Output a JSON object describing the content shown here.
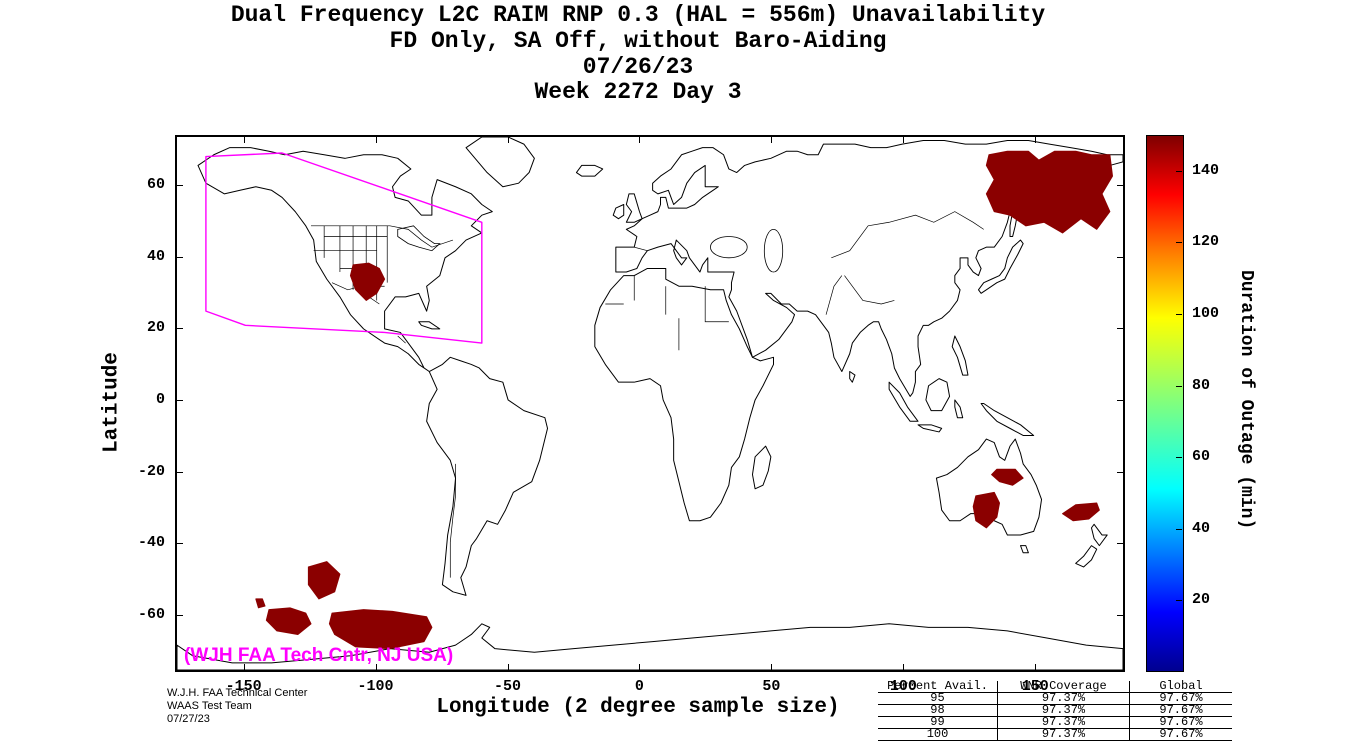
{
  "title": {
    "line1": "Dual Frequency L2C RAIM RNP 0.3 (HAL = 556m) Unavailability",
    "line2": "FD Only, SA Off, without Baro-Aiding",
    "line3": "07/26/23",
    "line4": "Week 2272 Day 3"
  },
  "axes": {
    "x_label": "Longitude (2 degree sample size)",
    "y_label": "Latitude",
    "x_ticks": [
      -150,
      -100,
      -50,
      0,
      50,
      100,
      150
    ],
    "y_ticks": [
      60,
      40,
      20,
      0,
      -20,
      -40,
      -60
    ]
  },
  "colorbar": {
    "label": "Duration of Outage (min)",
    "ticks": [
      20,
      40,
      60,
      80,
      100,
      120,
      140
    ],
    "min": 0,
    "max": 150,
    "colormap": "jet"
  },
  "map_annotation": "(WJH FAA Tech Cntr, NJ USA)",
  "annotation_color": "#ff00ff",
  "credit": {
    "line1": "W.J.H. FAA Technical Center",
    "line2": "WAAS Test Team",
    "line3": "07/27/23"
  },
  "stats_table": {
    "headers": [
      "Percent Avail.",
      "WNR Coverage",
      "Global"
    ],
    "rows": [
      [
        "95",
        "97.37%",
        "97.67%"
      ],
      [
        "98",
        "97.37%",
        "97.67%"
      ],
      [
        "99",
        "97.37%",
        "97.67%"
      ],
      [
        "100",
        "97.37%",
        "97.67%"
      ]
    ]
  },
  "chart_data": {
    "type": "heatmap",
    "title": "Dual Frequency L2C RAIM RNP 0.3 (HAL = 556m) Unavailability, FD Only, SA Off, without Baro-Aiding, 07/26/23, Week 2272 Day 3",
    "xlabel": "Longitude (2 degree sample size)",
    "ylabel": "Latitude",
    "xlim": [
      -176,
      184
    ],
    "ylim": [
      -76,
      74
    ],
    "grid": false,
    "colorbar_label": "Duration of Outage (min)",
    "colorbar_range": [
      0,
      150
    ],
    "outage_color": "#8b0000",
    "outage_duration_min_approx": 140,
    "waas_boundary_color": "#ff00ff",
    "waas_boundary": [
      [
        -165,
        68.5
      ],
      [
        -136,
        69.5
      ],
      [
        -60,
        50
      ],
      [
        -60,
        16
      ],
      [
        -97,
        19
      ],
      [
        -150,
        21
      ],
      [
        -165,
        25
      ]
    ],
    "outage_regions": [
      {
        "name": "northeast-asia",
        "polygon": [
          [
            133,
            69
          ],
          [
            140,
            70
          ],
          [
            148,
            70
          ],
          [
            152,
            67.5
          ],
          [
            158,
            70
          ],
          [
            166,
            70
          ],
          [
            172,
            69
          ],
          [
            179,
            69
          ],
          [
            180,
            63
          ],
          [
            176,
            58
          ],
          [
            179,
            53
          ],
          [
            174,
            48
          ],
          [
            168,
            51
          ],
          [
            161,
            47
          ],
          [
            154,
            50
          ],
          [
            147,
            49
          ],
          [
            141,
            52
          ],
          [
            135,
            53
          ],
          [
            132,
            58
          ],
          [
            135,
            62
          ],
          [
            132,
            66
          ]
        ]
      },
      {
        "name": "south-central-us",
        "polygon": [
          [
            -109,
            38
          ],
          [
            -103,
            38.5
          ],
          [
            -99,
            37
          ],
          [
            -97,
            34
          ],
          [
            -100,
            30
          ],
          [
            -104,
            28
          ],
          [
            -108,
            31
          ],
          [
            -110,
            35
          ]
        ]
      },
      {
        "name": "australia-northeast",
        "polygon": [
          [
            136,
            -19.5
          ],
          [
            143,
            -19.5
          ],
          [
            146,
            -22
          ],
          [
            142,
            -24
          ],
          [
            137,
            -23
          ],
          [
            134,
            -21
          ]
        ]
      },
      {
        "name": "australia-south",
        "polygon": [
          [
            128,
            -27
          ],
          [
            135,
            -26
          ],
          [
            137,
            -29
          ],
          [
            136,
            -33
          ],
          [
            132,
            -36
          ],
          [
            128,
            -34
          ],
          [
            127,
            -30
          ]
        ]
      },
      {
        "name": "tasman-east",
        "polygon": [
          [
            161,
            -32
          ],
          [
            166,
            -29.5
          ],
          [
            174,
            -29
          ],
          [
            175,
            -31
          ],
          [
            171,
            -33.5
          ],
          [
            165,
            -34
          ]
        ]
      },
      {
        "name": "south-pacific-a",
        "polygon": [
          [
            -126,
            -47
          ],
          [
            -119,
            -45.5
          ],
          [
            -114,
            -49
          ],
          [
            -116,
            -54
          ],
          [
            -122,
            -56
          ],
          [
            -126,
            -52
          ]
        ]
      },
      {
        "name": "south-pacific-b",
        "polygon": [
          [
            -146,
            -56
          ],
          [
            -143.5,
            -56
          ],
          [
            -142.5,
            -58
          ],
          [
            -145,
            -58.5
          ]
        ]
      },
      {
        "name": "south-pacific-c",
        "polygon": [
          [
            -141,
            -59
          ],
          [
            -133,
            -58.5
          ],
          [
            -127,
            -60
          ],
          [
            -125,
            -63
          ],
          [
            -130,
            -66
          ],
          [
            -138,
            -65
          ],
          [
            -142,
            -62
          ]
        ]
      },
      {
        "name": "south-pacific-d",
        "polygon": [
          [
            -117,
            -60
          ],
          [
            -105,
            -59
          ],
          [
            -94,
            -59.5
          ],
          [
            -81,
            -61
          ],
          [
            -79,
            -64
          ],
          [
            -82,
            -68
          ],
          [
            -95,
            -70
          ],
          [
            -108,
            -69.5
          ],
          [
            -116,
            -66
          ],
          [
            -118,
            -63
          ]
        ]
      }
    ]
  }
}
